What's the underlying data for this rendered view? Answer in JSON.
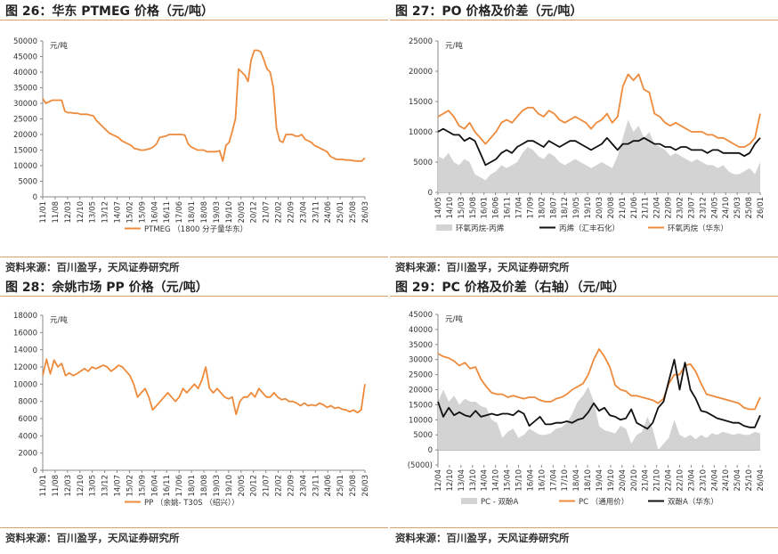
{
  "source_text": "资料来源：百川盈孚，天风证券研究所",
  "chart_data": [
    {
      "type": "line",
      "title": "图 26：华东 PTMEG 价格（元/吨）",
      "unit": "元/吨",
      "ylim": [
        0,
        50000
      ],
      "yticks": [
        0,
        5000,
        10000,
        15000,
        20000,
        25000,
        30000,
        35000,
        40000,
        45000,
        50000
      ],
      "xticks": [
        "11/01",
        "11/08",
        "12/03",
        "12/10",
        "13/05",
        "13/12",
        "14/07",
        "15/02",
        "15/09",
        "16/04",
        "16/11",
        "17/06",
        "18/01",
        "18/08",
        "19/03",
        "19/10",
        "20/05",
        "20/12",
        "21/07",
        "22/02",
        "22/09",
        "23/04",
        "23/11",
        "24/06",
        "25/01",
        "25/08",
        "26/03"
      ],
      "colors": {
        "accent": "#ee8a3b"
      },
      "series": [
        {
          "name": "PTMEG （1800 分子量华东）",
          "color": "#ee8a3b",
          "kind": "line",
          "values": [
            31500,
            30000,
            30500,
            31000,
            31000,
            31000,
            31000,
            27500,
            27000,
            27000,
            26800,
            26800,
            26500,
            26500,
            26500,
            26200,
            26000,
            24500,
            23500,
            22500,
            21500,
            20500,
            20000,
            19500,
            19000,
            18000,
            17500,
            17000,
            16500,
            15500,
            15300,
            15000,
            15000,
            15200,
            15500,
            16000,
            17000,
            19000,
            19300,
            19500,
            20000,
            20000,
            20000,
            20000,
            20000,
            19800,
            17000,
            16000,
            15500,
            15000,
            15000,
            15000,
            14500,
            14500,
            14500,
            14500,
            14800,
            11500,
            16500,
            17500,
            21000,
            25000,
            41000,
            40000,
            39000,
            37000,
            44000,
            47000,
            47000,
            46500,
            44000,
            41000,
            40000,
            35000,
            22000,
            18000,
            17500,
            20000,
            20000,
            20000,
            19500,
            19500,
            20000,
            18500,
            18000,
            17500,
            16500,
            16000,
            15500,
            15000,
            14500,
            13000,
            12500,
            12000,
            12000,
            12000,
            11800,
            11800,
            11700,
            11500,
            11500,
            11500,
            12500
          ]
        }
      ]
    },
    {
      "type": "line",
      "title": "图 27：PO 价格及价差（元/吨）",
      "unit": "元/吨",
      "ylim": [
        0,
        25000
      ],
      "yticks": [
        0,
        5000,
        10000,
        15000,
        20000,
        25000
      ],
      "xticks": [
        "14/05",
        "14/10",
        "15/03",
        "15/08",
        "16/01",
        "16/06",
        "16/11",
        "17/04",
        "17/09",
        "18/02",
        "18/07",
        "18/12",
        "19/05",
        "19/10",
        "20/03",
        "20/08",
        "21/01",
        "21/06",
        "21/11",
        "22/04",
        "22/09",
        "23/02",
        "23/07",
        "23/12",
        "24/05",
        "24/10",
        "25/03",
        "25/08",
        "26/01"
      ],
      "colors": {
        "spread": "#d3d3d3",
        "po": "#111111",
        "ech": "#ee8a3b"
      },
      "series": [
        {
          "name": "环氧丙烷-丙烯",
          "color": "#d3d3d3",
          "kind": "area",
          "values": [
            6000,
            5500,
            6500,
            5000,
            4500,
            5500,
            5000,
            3000,
            2500,
            2000,
            3000,
            3500,
            4500,
            4000,
            4500,
            5000,
            6500,
            7500,
            7000,
            6000,
            5500,
            6500,
            6000,
            5000,
            4500,
            5000,
            5500,
            5000,
            4500,
            4000,
            4500,
            5000,
            4500,
            4000,
            6000,
            9000,
            12000,
            10000,
            11000,
            9000,
            10000,
            8000,
            7500,
            7000,
            6000,
            6500,
            6000,
            5500,
            5000,
            5500,
            5000,
            4500,
            4500,
            4000,
            4500,
            3500,
            3000,
            3000,
            3500,
            4000,
            3000,
            5000
          ]
        },
        {
          "name": "丙烯（汇丰石化）",
          "color": "#111111",
          "kind": "line",
          "values": [
            10000,
            10500,
            10000,
            9500,
            9500,
            8500,
            9000,
            8500,
            6500,
            4500,
            5000,
            5500,
            6500,
            7000,
            6500,
            7500,
            8000,
            8500,
            8500,
            8000,
            7500,
            8500,
            8000,
            7500,
            8000,
            8500,
            8500,
            8000,
            7500,
            7000,
            7500,
            8000,
            9000,
            8000,
            7000,
            8000,
            8000,
            8500,
            8500,
            9000,
            8500,
            8000,
            8000,
            7500,
            7500,
            7000,
            7500,
            7500,
            7000,
            7000,
            7000,
            6500,
            7000,
            7000,
            6500,
            6500,
            6500,
            6500,
            6000,
            6500,
            8000,
            9000
          ]
        },
        {
          "name": "环氧丙烷（华东）",
          "color": "#ee8a3b",
          "kind": "line",
          "values": [
            12500,
            13000,
            13500,
            12500,
            11000,
            10500,
            11500,
            10000,
            9000,
            8000,
            9000,
            10000,
            11500,
            12000,
            11500,
            12500,
            13500,
            14000,
            14000,
            13000,
            12500,
            13500,
            13000,
            12000,
            11500,
            12000,
            12500,
            12000,
            11500,
            10500,
            11500,
            12000,
            13000,
            11500,
            12500,
            17500,
            19500,
            18500,
            19500,
            17000,
            16500,
            13000,
            12500,
            11500,
            11000,
            11500,
            11000,
            10500,
            10000,
            10000,
            10000,
            9500,
            9500,
            9000,
            9000,
            8500,
            8000,
            7500,
            7500,
            8000,
            9000,
            13000
          ]
        }
      ]
    },
    {
      "type": "line",
      "title": "图 28：余姚市场 PP 价格（元/吨）",
      "unit": "元/吨",
      "ylim": [
        0,
        18000
      ],
      "yticks": [
        0,
        2000,
        4000,
        6000,
        8000,
        10000,
        12000,
        14000,
        16000,
        18000
      ],
      "xticks": [
        "11/01",
        "11/08",
        "12/03",
        "12/10",
        "13/05",
        "13/12",
        "14/07",
        "15/02",
        "15/09",
        "16/04",
        "16/11",
        "17/06",
        "18/01",
        "18/08",
        "19/03",
        "19/10",
        "20/05",
        "20/12",
        "21/07",
        "22/02",
        "22/09",
        "23/04",
        "23/11",
        "24/06",
        "25/01",
        "25/08",
        "26/03"
      ],
      "colors": {
        "accent": "#ee8a3b"
      },
      "series": [
        {
          "name": "PP （余姚- T30S （绍兴））",
          "color": "#ee8a3b",
          "kind": "line",
          "values": [
            11000,
            12900,
            11200,
            12800,
            12000,
            12400,
            11000,
            11300,
            11000,
            11200,
            11500,
            11800,
            11500,
            12000,
            11800,
            12000,
            12200,
            12000,
            11500,
            11800,
            12200,
            12000,
            11500,
            11000,
            10000,
            8500,
            9000,
            9500,
            8500,
            7000,
            7500,
            8000,
            8500,
            9000,
            8500,
            8000,
            8500,
            9500,
            9000,
            9500,
            10000,
            9500,
            10500,
            12000,
            9500,
            9000,
            9500,
            9000,
            8500,
            8300,
            8500,
            6500,
            8000,
            8500,
            8500,
            9000,
            8500,
            9500,
            9000,
            8500,
            8500,
            9000,
            8500,
            8200,
            8300,
            8000,
            8000,
            7800,
            7500,
            7800,
            7500,
            7600,
            7500,
            7800,
            7600,
            7300,
            7500,
            7200,
            7300,
            7100,
            7000,
            6800,
            7000,
            6700,
            7000,
            10000
          ]
        }
      ]
    },
    {
      "type": "line",
      "title": "图 29：PC 价格及价差（右轴）（元/吨）",
      "unit": "元/吨",
      "ylim": [
        -5000,
        45000
      ],
      "yticks": [
        -5000,
        0,
        5000,
        10000,
        15000,
        20000,
        25000,
        30000,
        35000,
        40000,
        45000
      ],
      "ytick_labels": [
        "(5000)",
        "0",
        "5000",
        "10000",
        "15000",
        "20000",
        "25000",
        "30000",
        "35000",
        "40000",
        "45000"
      ],
      "xticks": [
        "12/04",
        "12/10",
        "13/04",
        "13/10",
        "14/04",
        "14/10",
        "15/04",
        "15/10",
        "16/04",
        "16/10",
        "17/04",
        "17/10",
        "18/04",
        "18/10",
        "19/04",
        "19/10",
        "20/04",
        "20/10",
        "21/04",
        "21/10",
        "22/04",
        "22/10",
        "23/04",
        "23/10",
        "24/04",
        "24/10",
        "25/04",
        "25/10",
        "26/04"
      ],
      "colors": {
        "spread": "#d3d3d3",
        "pc": "#ee8a3b",
        "bpa": "#111111"
      },
      "series": [
        {
          "name": "PC - 双酚A",
          "color": "#d3d3d3",
          "kind": "area",
          "values": [
            16000,
            20000,
            16000,
            18000,
            15000,
            17000,
            16000,
            16000,
            14500,
            14000,
            10000,
            9000,
            4000,
            6000,
            7000,
            4000,
            5000,
            7000,
            6000,
            5000,
            5000,
            5500,
            7000,
            7500,
            9000,
            12000,
            16000,
            18000,
            21000,
            16000,
            8000,
            6500,
            6000,
            5500,
            8000,
            7000,
            2000,
            5000,
            6000,
            11000,
            7000,
            0,
            2000,
            4000,
            10000,
            5000,
            4000,
            5000,
            3500,
            5000,
            4000,
            5500,
            5000,
            6000,
            5500,
            5000,
            5500,
            5000,
            5000,
            6000,
            5500
          ]
        },
        {
          "name": "PC （通用价）",
          "color": "#ee8a3b",
          "kind": "line",
          "values": [
            32000,
            31000,
            30500,
            29500,
            28000,
            29000,
            27000,
            27500,
            23500,
            21000,
            19000,
            18500,
            18500,
            17500,
            18000,
            17500,
            17000,
            17500,
            17500,
            16500,
            16000,
            16000,
            17000,
            17500,
            18500,
            20000,
            21000,
            22000,
            25000,
            30000,
            33500,
            31000,
            27500,
            21500,
            20000,
            19500,
            18000,
            18000,
            17500,
            17000,
            16500,
            15500,
            17000,
            22000,
            25000,
            25000,
            28000,
            28500,
            26000,
            22000,
            18500,
            18000,
            17500,
            17000,
            16500,
            16000,
            15500,
            14000,
            13500,
            13500,
            17500
          ]
        },
        {
          "name": "双酚A（华东）",
          "color": "#111111",
          "kind": "line",
          "values": [
            16000,
            11000,
            14000,
            11500,
            12500,
            11500,
            11000,
            13000,
            11000,
            11500,
            12000,
            11500,
            12000,
            12000,
            11500,
            13000,
            12000,
            8000,
            9500,
            11000,
            8500,
            8500,
            9000,
            9000,
            9500,
            9000,
            10000,
            10500,
            12500,
            15500,
            13000,
            14000,
            11500,
            11000,
            10000,
            10500,
            13500,
            9000,
            8000,
            7000,
            9000,
            14000,
            16000,
            23000,
            30000,
            20000,
            29000,
            20000,
            17000,
            13000,
            12500,
            11500,
            10500,
            10000,
            9500,
            9000,
            9000,
            8000,
            7500,
            7500,
            11500
          ]
        }
      ]
    }
  ]
}
